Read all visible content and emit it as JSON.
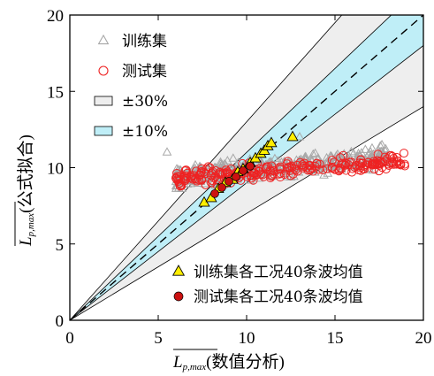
{
  "chart_data": {
    "type": "scatter",
    "xlim": [
      0,
      20
    ],
    "ylim": [
      0,
      20
    ],
    "x_ticks": [
      "0",
      "5",
      "10",
      "15",
      "20"
    ],
    "y_ticks": [
      "0",
      "5",
      "10",
      "15",
      "20"
    ],
    "xlabel": {
      "base": "L",
      "sub": "p,max",
      "suffix": "(数值分析)"
    },
    "ylabel": {
      "base": "L",
      "sub": "p,max",
      "suffix": "(公式拟合)"
    },
    "bands": [
      {
        "name": "±30%",
        "lower_factor": 0.7,
        "upper_factor": 1.3,
        "color": "#eeeeee"
      },
      {
        "name": "±10%",
        "lower_factor": 0.9,
        "upper_factor": 1.1,
        "color": "#bfeef7"
      }
    ],
    "reference_line": {
      "slope": 1,
      "style": "dashed"
    },
    "series": [
      {
        "name": "训练集",
        "marker": "triangle-open",
        "color": "#a8a8a8",
        "cloud": {
          "x_range": [
            6.0,
            18.0
          ],
          "y_center": 9.8,
          "y_spread": 1.2,
          "count": 420,
          "notable_points": [
            [
              13.0,
              12.0
            ],
            [
              5.5,
              11.0
            ]
          ]
        }
      },
      {
        "name": "测试集",
        "marker": "circle-open",
        "color": "#ee2222",
        "cloud": {
          "x_range": [
            6.0,
            19.0
          ],
          "y_center": 9.6,
          "y_spread": 1.0,
          "count": 260
        }
      },
      {
        "name": "训练集各工况40条波均值",
        "marker": "triangle-filled",
        "color": "#ffee00",
        "points": [
          [
            7.6,
            7.7
          ],
          [
            8.0,
            8.0
          ],
          [
            8.4,
            8.6
          ],
          [
            8.8,
            9.0
          ],
          [
            9.2,
            9.2
          ],
          [
            9.5,
            9.7
          ],
          [
            9.8,
            9.9
          ],
          [
            10.2,
            10.3
          ],
          [
            10.5,
            10.6
          ],
          [
            10.8,
            10.9
          ],
          [
            11.0,
            11.1
          ],
          [
            11.2,
            11.4
          ],
          [
            11.4,
            11.6
          ],
          [
            12.6,
            12.0
          ]
        ]
      },
      {
        "name": "测试集各工况40条波均值",
        "marker": "circle-filled",
        "color": "#cc1111",
        "points": [
          [
            8.2,
            8.3
          ],
          [
            8.6,
            8.7
          ],
          [
            9.0,
            9.1
          ],
          [
            9.4,
            9.4
          ],
          [
            9.8,
            9.8
          ],
          [
            10.2,
            10.1
          ]
        ]
      }
    ],
    "legend": {
      "top_left": [
        {
          "label": "训练集",
          "marker": "triangle-open",
          "color": "#a8a8a8"
        },
        {
          "label": "测试集",
          "marker": "circle-open",
          "color": "#ee2222"
        },
        {
          "label": "±30%",
          "marker": "box",
          "color": "#eeeeee"
        },
        {
          "label": "±10%",
          "marker": "box",
          "color": "#bfeef7"
        }
      ],
      "bottom_right": [
        {
          "label": "训练集各工况40条波均值",
          "marker": "triangle-filled",
          "color": "#ffee00"
        },
        {
          "label": "测试集各工况40条波均值",
          "marker": "circle-filled",
          "color": "#cc1111"
        }
      ]
    }
  }
}
